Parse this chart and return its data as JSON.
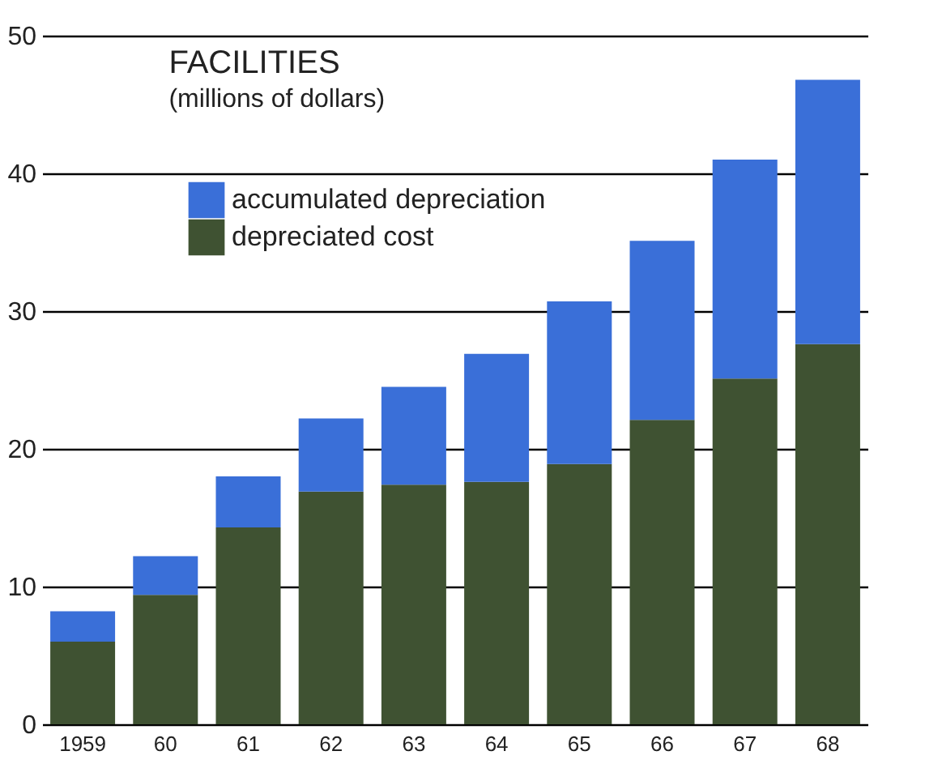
{
  "chart_data": {
    "type": "bar",
    "title": "FACILITIES",
    "subtitle": "(millions of dollars)",
    "stacked": true,
    "categories": [
      "1959",
      "60",
      "61",
      "62",
      "63",
      "64",
      "65",
      "66",
      "67",
      "68"
    ],
    "series": [
      {
        "name": "depreciated cost",
        "color": "#3f5232",
        "values": [
          6.0,
          9.4,
          14.3,
          16.9,
          17.4,
          17.6,
          18.9,
          22.1,
          25.1,
          27.6
        ]
      },
      {
        "name": "accumulated depreciation",
        "color": "#3a6fd8",
        "values": [
          2.2,
          2.8,
          3.7,
          5.3,
          7.1,
          9.3,
          11.8,
          13.0,
          15.9,
          19.2
        ]
      }
    ],
    "ylim": [
      0,
      50
    ],
    "yticks": [
      0,
      10,
      20,
      30,
      40,
      50
    ],
    "grid": "y",
    "legend": "top left"
  }
}
